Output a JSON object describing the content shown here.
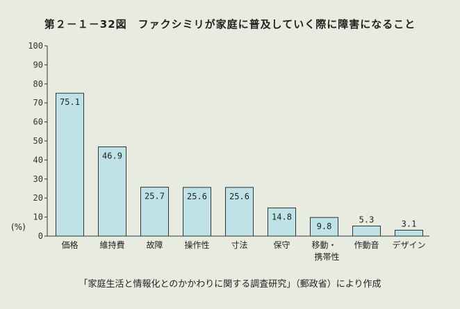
{
  "chart_data": {
    "type": "bar",
    "title": "第２－１－32図　ファクシミリが家庭に普及していく際に障害になること",
    "ylabel": "(%)",
    "ylim": [
      0,
      100
    ],
    "yticks": [
      0,
      10,
      20,
      30,
      40,
      50,
      60,
      70,
      80,
      90,
      100
    ],
    "categories": [
      "価格",
      "維持費",
      "故障",
      "操作性",
      "寸法",
      "保守",
      "移動・携帯性",
      "作動音",
      "デザイン"
    ],
    "category_lines": [
      [
        "価格"
      ],
      [
        "維持費"
      ],
      [
        "故障"
      ],
      [
        "操作性"
      ],
      [
        "寸法"
      ],
      [
        "保守"
      ],
      [
        "移動・",
        "携帯性"
      ],
      [
        "作動音"
      ],
      [
        "デザイン"
      ]
    ],
    "values": [
      75.1,
      46.9,
      25.7,
      25.6,
      25.6,
      14.8,
      9.8,
      5.3,
      3.1
    ],
    "value_labels": [
      "75.1",
      "46.9",
      "25.7",
      "25.6",
      "25.6",
      "14.8",
      "9.8",
      "5.3",
      "3.1"
    ],
    "label_inside": [
      true,
      true,
      true,
      true,
      true,
      true,
      true,
      false,
      false
    ],
    "bar_color": "#bfe2e6",
    "bar_stroke": "#333333",
    "grid": false,
    "legend": "none"
  },
  "source": "「家庭生活と情報化とのかかわりに関する調査研究」（郵政省）により作成"
}
